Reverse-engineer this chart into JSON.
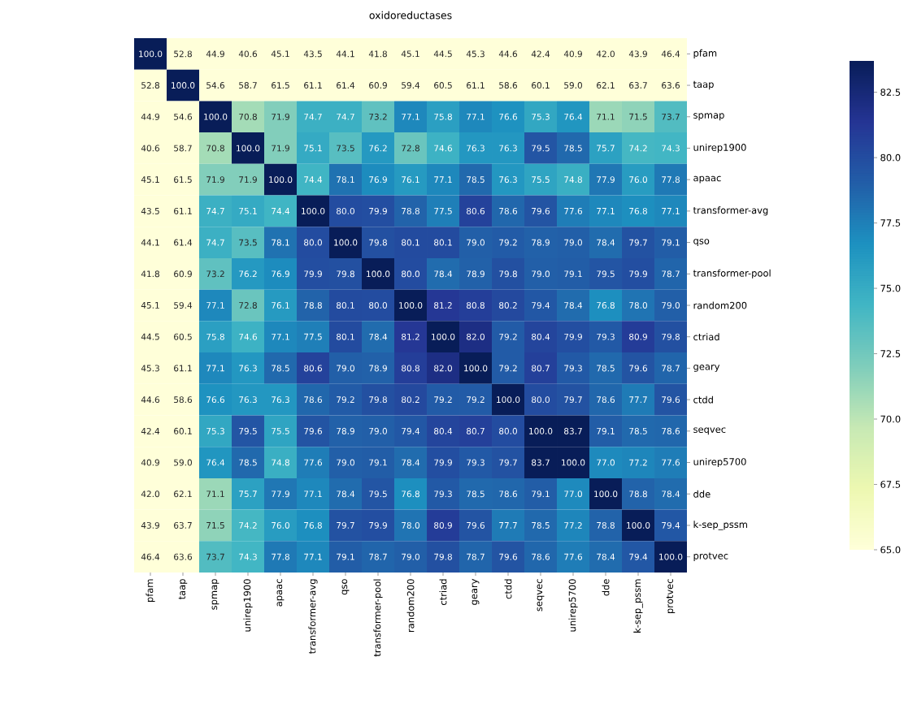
{
  "chart_data": {
    "type": "heatmap",
    "title": "oxidoreductases",
    "categories": [
      "pfam",
      "taap",
      "spmap",
      "unirep1900",
      "apaac",
      "transformer-avg",
      "qso",
      "transformer-pool",
      "random200",
      "ctriad",
      "geary",
      "ctdd",
      "seqvec",
      "unirep5700",
      "dde",
      "k-sep_pssm",
      "protvec"
    ],
    "y_categories": [
      "pfam",
      "taap",
      "spmap",
      "unirep1900",
      "apaac",
      "transformer-avg",
      "qso",
      "transformer-pool",
      "random200",
      "ctriad",
      "geary",
      "ctdd",
      "seqvec",
      "unirep5700",
      "dde",
      "k-sep_pssm",
      "protvec"
    ],
    "cells": [
      [
        100.0,
        52.8,
        44.9,
        40.6,
        45.1,
        43.5,
        44.1,
        41.8,
        45.1,
        44.5,
        45.3,
        44.6,
        42.4,
        40.9,
        42.0,
        43.9,
        46.4
      ],
      [
        52.8,
        100.0,
        54.6,
        58.7,
        61.5,
        61.1,
        61.4,
        60.9,
        59.4,
        60.5,
        61.1,
        58.6,
        60.1,
        59.0,
        62.1,
        63.7,
        63.6
      ],
      [
        44.9,
        54.6,
        100.0,
        70.8,
        71.9,
        74.7,
        74.7,
        73.2,
        77.1,
        75.8,
        77.1,
        76.6,
        75.3,
        76.4,
        71.1,
        71.5,
        73.7
      ],
      [
        40.6,
        58.7,
        70.8,
        100.0,
        71.9,
        75.1,
        73.5,
        76.2,
        72.8,
        74.6,
        76.3,
        76.3,
        79.5,
        78.5,
        75.7,
        74.2,
        74.3
      ],
      [
        45.1,
        61.5,
        71.9,
        71.9,
        100.0,
        74.4,
        78.1,
        76.9,
        76.1,
        77.1,
        78.5,
        76.3,
        75.5,
        74.8,
        77.9,
        76.0,
        77.8
      ],
      [
        43.5,
        61.1,
        74.7,
        75.1,
        74.4,
        100.0,
        80.0,
        79.9,
        78.8,
        77.5,
        80.6,
        78.6,
        79.6,
        77.6,
        77.1,
        76.8,
        77.1
      ],
      [
        44.1,
        61.4,
        74.7,
        73.5,
        78.1,
        80.0,
        100.0,
        79.8,
        80.1,
        80.1,
        79.0,
        79.2,
        78.9,
        79.0,
        78.4,
        79.7,
        79.1
      ],
      [
        41.8,
        60.9,
        73.2,
        76.2,
        76.9,
        79.9,
        79.8,
        100.0,
        80.0,
        78.4,
        78.9,
        79.8,
        79.0,
        79.1,
        79.5,
        79.9,
        78.7
      ],
      [
        45.1,
        59.4,
        77.1,
        72.8,
        76.1,
        78.8,
        80.1,
        80.0,
        100.0,
        81.2,
        80.8,
        80.2,
        79.4,
        78.4,
        76.8,
        78.0,
        79.0
      ],
      [
        44.5,
        60.5,
        75.8,
        74.6,
        77.1,
        77.5,
        80.1,
        78.4,
        81.2,
        100.0,
        82.0,
        79.2,
        80.4,
        79.9,
        79.3,
        80.9,
        79.8
      ],
      [
        45.3,
        61.1,
        77.1,
        76.3,
        78.5,
        80.6,
        79.0,
        78.9,
        80.8,
        82.0,
        100.0,
        79.2,
        80.7,
        79.3,
        78.5,
        79.6,
        78.7
      ],
      [
        44.6,
        58.6,
        76.6,
        76.3,
        76.3,
        78.6,
        79.2,
        79.8,
        80.2,
        79.2,
        79.2,
        100.0,
        80.0,
        79.7,
        78.6,
        77.7,
        79.6
      ],
      [
        42.4,
        60.1,
        75.3,
        79.5,
        75.5,
        79.6,
        78.9,
        79.0,
        79.4,
        80.4,
        80.7,
        80.0,
        100.0,
        83.7,
        79.1,
        78.5,
        78.6
      ],
      [
        40.9,
        59.0,
        76.4,
        78.5,
        74.8,
        77.6,
        79.0,
        79.1,
        78.4,
        79.9,
        79.3,
        79.7,
        83.7,
        100.0,
        77.0,
        77.2,
        77.6
      ],
      [
        42.0,
        62.1,
        71.1,
        75.7,
        77.9,
        77.1,
        78.4,
        79.5,
        76.8,
        79.3,
        78.5,
        78.6,
        79.1,
        77.0,
        100.0,
        78.8,
        78.4
      ],
      [
        43.9,
        63.7,
        71.5,
        74.2,
        76.0,
        76.8,
        79.7,
        79.9,
        78.0,
        80.9,
        79.6,
        77.7,
        78.5,
        77.2,
        78.8,
        100.0,
        79.4
      ],
      [
        46.4,
        63.6,
        73.7,
        74.3,
        77.8,
        77.1,
        79.1,
        78.7,
        79.0,
        79.8,
        78.7,
        79.6,
        78.6,
        77.6,
        78.4,
        79.4,
        100.0
      ]
    ],
    "cell_labels": [
      [
        "100.0",
        "52.8",
        "44.9",
        "40.6",
        "45.1",
        "43.5",
        "44.1",
        "41.8",
        "45.1",
        "44.5",
        "45.3",
        "44.6",
        "42.4",
        "40.9",
        "42.0",
        "43.9",
        "46.4"
      ],
      [
        "52.8",
        "100.0",
        "54.6",
        "58.7",
        "61.5",
        "61.1",
        "61.4",
        "60.9",
        "59.4",
        "60.5",
        "61.1",
        "58.6",
        "60.1",
        "59.0",
        "62.1",
        "63.7",
        "63.6"
      ],
      [
        "44.9",
        "54.6",
        "100.0",
        "70.8",
        "71.9",
        "74.7",
        "74.7",
        "73.2",
        "77.1",
        "75.8",
        "77.1",
        "76.6",
        "75.3",
        "76.4",
        "71.1",
        "71.5",
        "73.7"
      ],
      [
        "40.6",
        "58.7",
        "70.8",
        "100.0",
        "71.9",
        "75.1",
        "73.5",
        "76.2",
        "72.8",
        "74.6",
        "76.3",
        "76.3",
        "79.5",
        "78.5",
        "75.7",
        "74.2",
        "74.3"
      ],
      [
        "45.1",
        "61.5",
        "71.9",
        "71.9",
        "100.0",
        "74.4",
        "78.1",
        "76.9",
        "76.1",
        "77.1",
        "78.5",
        "76.3",
        "75.5",
        "74.8",
        "77.9",
        "76.0",
        "77.8"
      ],
      [
        "43.5",
        "61.1",
        "74.7",
        "75.1",
        "74.4",
        "100.0",
        "80.0",
        "79.9",
        "78.8",
        "77.5",
        "80.6",
        "78.6",
        "79.6",
        "77.6",
        "77.1",
        "76.8",
        "77.1"
      ],
      [
        "44.1",
        "61.4",
        "74.7",
        "73.5",
        "78.1",
        "80.0",
        "100.0",
        "79.8",
        "80.1",
        "80.1",
        "79.0",
        "79.2",
        "78.9",
        "79.0",
        "78.4",
        "79.7",
        "79.1"
      ],
      [
        "41.8",
        "60.9",
        "73.2",
        "76.2",
        "76.9",
        "79.9",
        "79.8",
        "100.0",
        "80.0",
        "78.4",
        "78.9",
        "79.8",
        "79.0",
        "79.1",
        "79.5",
        "79.9",
        "78.7"
      ],
      [
        "45.1",
        "59.4",
        "77.1",
        "72.8",
        "76.1",
        "78.8",
        "80.1",
        "80.0",
        "100.0",
        "81.2",
        "80.8",
        "80.2",
        "79.4",
        "78.4",
        "76.8",
        "78.0",
        "79.0"
      ],
      [
        "44.5",
        "60.5",
        "75.8",
        "74.6",
        "77.1",
        "77.5",
        "80.1",
        "78.4",
        "81.2",
        "100.0",
        "82.0",
        "79.2",
        "80.4",
        "79.9",
        "79.3",
        "80.9",
        "79.8"
      ],
      [
        "45.3",
        "61.1",
        "77.1",
        "76.3",
        "78.5",
        "80.6",
        "79.0",
        "78.9",
        "80.8",
        "82.0",
        "100.0",
        "79.2",
        "80.7",
        "79.3",
        "78.5",
        "79.6",
        "78.7"
      ],
      [
        "44.6",
        "58.6",
        "76.6",
        "76.3",
        "76.3",
        "78.6",
        "79.2",
        "79.8",
        "80.2",
        "79.2",
        "79.2",
        "100.0",
        "80.0",
        "79.7",
        "78.6",
        "77.7",
        "79.6"
      ],
      [
        "42.4",
        "60.1",
        "75.3",
        "79.5",
        "75.5",
        "79.6",
        "78.9",
        "79.0",
        "79.4",
        "80.4",
        "80.7",
        "80.0",
        "100.0",
        "83.7",
        "79.1",
        "78.5",
        "78.6"
      ],
      [
        "40.9",
        "59.0",
        "76.4",
        "78.5",
        "74.8",
        "77.6",
        "79.0",
        "79.1",
        "78.4",
        "79.9",
        "79.3",
        "79.7",
        "83.7",
        "100.0",
        "77.0",
        "77.2",
        "77.6"
      ],
      [
        "42.0",
        "62.1",
        "71.1",
        "75.7",
        "77.9",
        "77.1",
        "78.4",
        "79.5",
        "76.8",
        "79.3",
        "78.5",
        "78.6",
        "79.1",
        "77.0",
        "100.0",
        "78.8",
        "78.4"
      ],
      [
        "43.9",
        "63.7",
        "71.5",
        "74.2",
        "76.0",
        "76.8",
        "79.7",
        "79.9",
        "78.0",
        "80.9",
        "79.6",
        "77.7",
        "78.5",
        "77.2",
        "78.8",
        "100.0",
        "79.4"
      ],
      [
        "46.4",
        "63.6",
        "73.7",
        "74.3",
        "77.8",
        "77.1",
        "79.1",
        "78.7",
        "79.0",
        "79.8",
        "78.7",
        "79.6",
        "78.6",
        "77.6",
        "78.4",
        "79.4",
        "100.0"
      ]
    ],
    "clim": [
      65,
      83.7
    ],
    "cticks": [
      {
        "value": 65,
        "label": "65.0"
      },
      {
        "value": 67.5,
        "label": "67.5"
      },
      {
        "value": 70,
        "label": "70.0"
      },
      {
        "value": 72.5,
        "label": "72.5"
      },
      {
        "value": 75,
        "label": "75.0"
      },
      {
        "value": 77.5,
        "label": "77.5"
      },
      {
        "value": 80,
        "label": "80.0"
      },
      {
        "value": 82.5,
        "label": "82.5"
      }
    ]
  }
}
